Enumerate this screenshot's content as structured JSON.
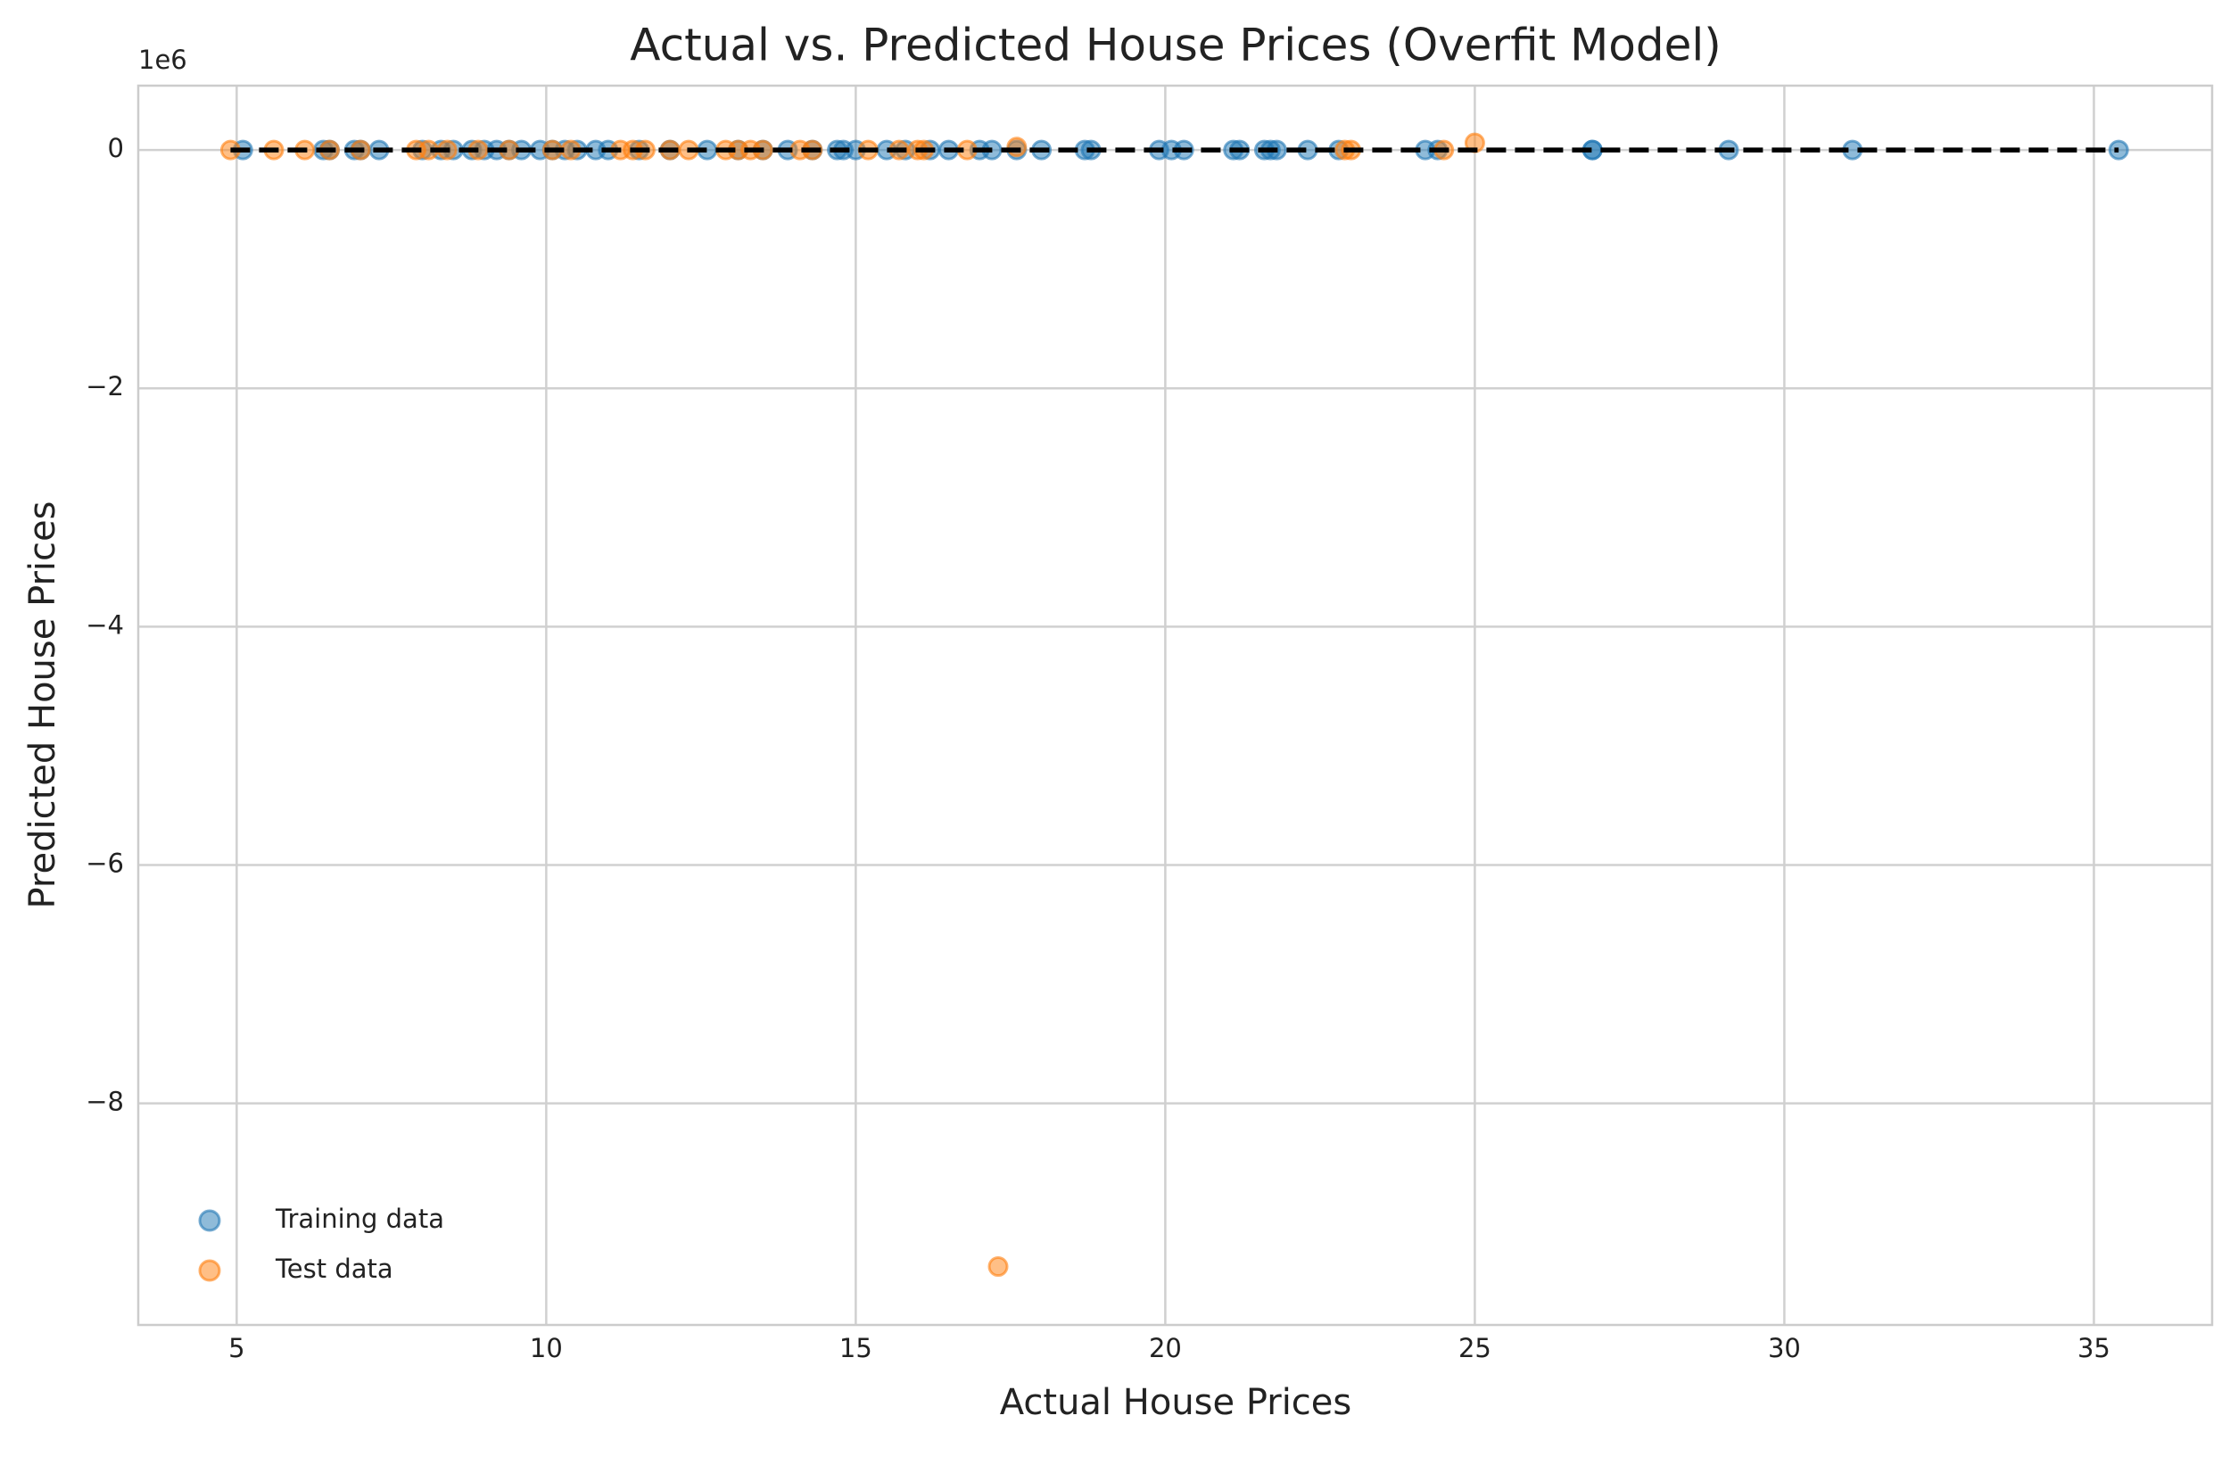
{
  "chart_data": {
    "type": "scatter",
    "title": "Actual vs. Predicted House Prices (Overfit Model)",
    "x_label": "Actual House Prices",
    "y_label": "Predicted House Prices",
    "y_offset_label": "1e6",
    "xlim": [
      3.41,
      36.91
    ],
    "ylim": [
      -9860000,
      540000
    ],
    "xticks": [
      5,
      10,
      15,
      20,
      25,
      30,
      35
    ],
    "yticks": [
      {
        "value": -8000000,
        "label": "−8"
      },
      {
        "value": -6000000,
        "label": "−6"
      },
      {
        "value": -4000000,
        "label": "−4"
      },
      {
        "value": -2000000,
        "label": "−2"
      },
      0
    ],
    "grid": true,
    "legend": "lower left",
    "series": [
      {
        "name": "Training data",
        "color": "#1f77b4",
        "x": [
          5.1,
          6.4,
          6.5,
          6.9,
          7.0,
          7.3,
          8.0,
          8.3,
          8.5,
          8.8,
          9.0,
          9.2,
          9.4,
          9.6,
          9.9,
          10.1,
          10.3,
          10.5,
          10.8,
          11.0,
          11.5,
          12.0,
          12.6,
          13.1,
          13.5,
          13.9,
          14.3,
          14.7,
          14.8,
          15.0,
          15.5,
          15.8,
          16.2,
          16.5,
          17.0,
          17.2,
          17.6,
          18.0,
          18.7,
          18.8,
          19.9,
          20.1,
          20.3,
          21.1,
          21.2,
          21.6,
          21.7,
          21.8,
          22.3,
          22.8,
          24.2,
          24.4,
          26.9,
          26.9,
          29.1,
          31.1,
          35.4
        ],
        "values": [
          5.1,
          6.4,
          6.5,
          6.9,
          7.0,
          7.3,
          8.0,
          8.3,
          8.5,
          8.8,
          9.0,
          9.2,
          9.4,
          9.6,
          9.9,
          10.1,
          10.3,
          10.5,
          10.8,
          11.0,
          11.5,
          12.0,
          12.6,
          13.1,
          13.5,
          13.9,
          14.3,
          14.7,
          14.8,
          15.0,
          15.5,
          15.8,
          16.2,
          16.5,
          17.0,
          17.2,
          17.6,
          18.0,
          18.7,
          18.8,
          19.9,
          20.1,
          20.3,
          21.1,
          21.2,
          21.6,
          21.7,
          21.8,
          22.3,
          22.8,
          24.2,
          24.4,
          26.9,
          26.9,
          29.1,
          31.1,
          35.4
        ]
      },
      {
        "name": "Test data",
        "color": "#ff7f0e",
        "x": [
          4.9,
          5.6,
          6.1,
          6.5,
          7.0,
          7.9,
          8.1,
          8.4,
          8.9,
          9.4,
          10.1,
          10.4,
          11.2,
          11.4,
          11.6,
          12.0,
          12.3,
          12.9,
          13.1,
          13.3,
          13.5,
          14.1,
          14.3,
          15.2,
          15.7,
          16.0,
          16.1,
          16.8,
          17.3,
          17.6,
          22.9,
          23.0,
          24.5,
          25.0
        ],
        "values": [
          4.9,
          5.6,
          6.1,
          6.5,
          7.0,
          7.9,
          8.1,
          8.4,
          8.9,
          9.4,
          10.1,
          10.4,
          11.2,
          11.4,
          11.6,
          12.0,
          12.3,
          12.9,
          13.1,
          13.3,
          13.5,
          14.1,
          14.3,
          15.2,
          15.7,
          16.0,
          16.1,
          16.8,
          -9370000,
          25000,
          22.9,
          23.0,
          24.5,
          60000
        ]
      }
    ],
    "reference_line": {
      "color": "#000000",
      "x": [
        4.9,
        35.4
      ],
      "values": [
        4.9,
        35.4
      ]
    }
  }
}
